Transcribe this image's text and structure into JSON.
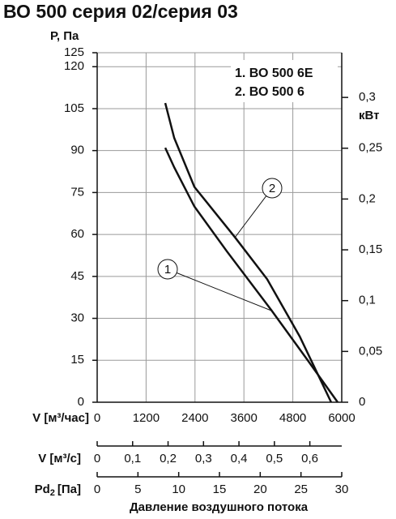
{
  "chart_data": {
    "type": "line",
    "title": "ВО 500 серия 02/серия 03",
    "y_label": "Р, Па",
    "y2_label": "кВт",
    "x_label": "V [м³/час]",
    "xlim": [
      0,
      6000
    ],
    "xticks": [
      0,
      1200,
      2400,
      3600,
      4800,
      6000
    ],
    "ylim": [
      0,
      125
    ],
    "yticks": [
      0,
      15,
      30,
      45,
      60,
      75,
      90,
      105,
      120,
      125
    ],
    "y2lim": [
      0,
      0.344
    ],
    "y2ticks": [
      0,
      {
        "value": 0.05,
        "label": "0,05"
      },
      {
        "value": 0.1,
        "label": "0,1"
      },
      {
        "value": 0.15,
        "label": "0,15"
      },
      {
        "value": 0.2,
        "label": "0,2"
      },
      {
        "value": 0.25,
        "label": "0,25"
      },
      {
        "value": 0.3,
        "label": "0,3"
      }
    ],
    "grid": true,
    "series": [
      {
        "name": "1. ВО 500 6Е",
        "marker": "1",
        "color": "#111111",
        "x": [
          1670,
          1890,
          2385,
          3180,
          4270,
          5165,
          5900
        ],
        "values": [
          91,
          84,
          70,
          54,
          33,
          15,
          0
        ]
      },
      {
        "name": "2. ВО 500 6",
        "marker": "2",
        "color": "#111111",
        "x": [
          1670,
          1890,
          2385,
          3380,
          4170,
          4970,
          5740
        ],
        "values": [
          107,
          94.5,
          77,
          59,
          44,
          23.5,
          0
        ]
      }
    ],
    "extra_axes": [
      {
        "label": "V [м³/с]",
        "xlim": [
          0,
          0.69
        ],
        "xticks": [
          0,
          {
            "value": 0.1,
            "label": "0,1"
          },
          {
            "value": 0.2,
            "label": "0,2"
          },
          {
            "value": 0.3,
            "label": "0,3"
          },
          {
            "value": 0.4,
            "label": "0,4"
          },
          {
            "value": 0.5,
            "label": "0,5"
          },
          {
            "value": 0.6,
            "label": "0,6"
          }
        ]
      },
      {
        "label": "Pd",
        "label_sub": "2",
        "label_unit": "[Па]",
        "xlim": [
          0,
          30
        ],
        "xticks": [
          0,
          5,
          10,
          15,
          20,
          25,
          30
        ]
      }
    ],
    "caption": "Давление воздушного потока"
  }
}
